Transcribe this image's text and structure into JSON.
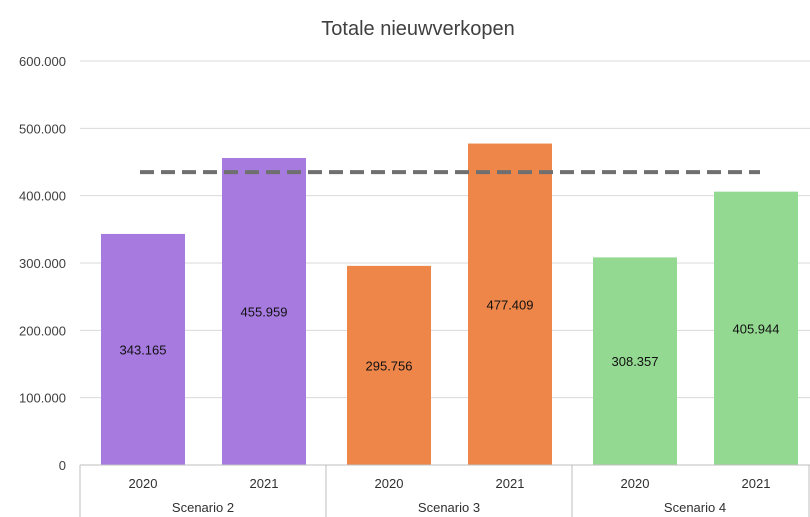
{
  "chart_data": {
    "type": "bar",
    "title": "Totale nieuwverkopen",
    "xlabel": "",
    "ylabel": "",
    "ylim": [
      0,
      600000
    ],
    "yticks": [
      0,
      100000,
      200000,
      300000,
      400000,
      500000,
      600000
    ],
    "ytick_labels": [
      "0",
      "100.000",
      "200.000",
      "300.000",
      "400.000",
      "500.000",
      "600.000"
    ],
    "grid": true,
    "legend": "none",
    "groups": [
      {
        "name": "Scenario 2",
        "color": "#a77ae0",
        "bars": [
          {
            "category": "2020",
            "value": 343165,
            "label": "343.165"
          },
          {
            "category": "2021",
            "value": 455959,
            "label": "455.959"
          }
        ]
      },
      {
        "name": "Scenario 3",
        "color": "#ee864a",
        "bars": [
          {
            "category": "2020",
            "value": 295756,
            "label": "295.756"
          },
          {
            "category": "2021",
            "value": 477409,
            "label": "477.409"
          }
        ]
      },
      {
        "name": "Scenario 4",
        "color": "#94d992",
        "bars": [
          {
            "category": "2020",
            "value": 308357,
            "label": "308.357"
          },
          {
            "category": "2021",
            "value": 405944,
            "label": "405.944"
          }
        ]
      }
    ],
    "reference_line": {
      "value": 435000,
      "style": "dashed",
      "color": "#6f6f6f"
    },
    "colors": {
      "grid": "#d9d9d9",
      "axis": "#bfbfbf"
    }
  }
}
